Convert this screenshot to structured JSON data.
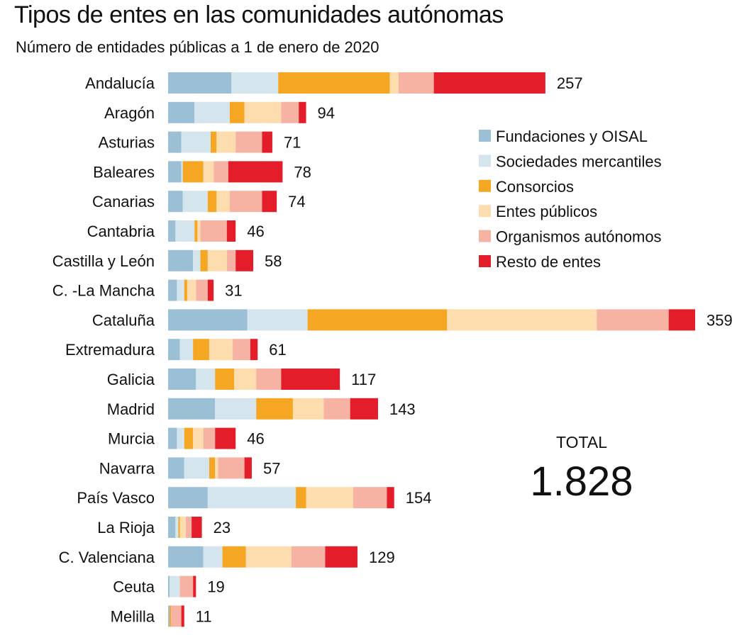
{
  "chart_data": {
    "type": "bar",
    "orientation": "horizontal",
    "stacked": true,
    "title": "Tipos de entes en las comunidades autónomas",
    "subtitle": "Número de entidades públicas a 1 de enero de 2020",
    "categories": [
      "Andalucía",
      "Aragón",
      "Asturias",
      "Baleares",
      "Canarias",
      "Cantabria",
      "Castilla y León",
      "C. -La Mancha",
      "Cataluña",
      "Extremadura",
      "Galicia",
      "Madrid",
      "Murcia",
      "Navarra",
      "País Vasco",
      "La Rioja",
      "C. Valenciana",
      "Ceuta",
      "Melilla"
    ],
    "totals": [
      257,
      94,
      71,
      78,
      74,
      46,
      58,
      31,
      359,
      61,
      117,
      143,
      46,
      57,
      154,
      23,
      129,
      19,
      11
    ],
    "series": [
      {
        "name": "Fundaciones y OISAL",
        "color": "#9bbfd4",
        "values": [
          43,
          18,
          9,
          9,
          10,
          5,
          17,
          6,
          54,
          8,
          19,
          32,
          6,
          11,
          27,
          5,
          24,
          1,
          1
        ]
      },
      {
        "name": "Sociedades mercantiles",
        "color": "#d4e5ee",
        "values": [
          32,
          24,
          20,
          1,
          17,
          13,
          5,
          5,
          41,
          9,
          13,
          28,
          5,
          17,
          60,
          2,
          13,
          7,
          0
        ]
      },
      {
        "name": "Consorcios",
        "color": "#f5a623",
        "values": [
          76,
          10,
          4,
          14,
          6,
          2,
          5,
          2,
          95,
          11,
          13,
          25,
          6,
          4,
          7,
          1,
          16,
          0,
          1
        ]
      },
      {
        "name": "Entes públicos",
        "color": "#fddcad",
        "values": [
          6,
          25,
          13,
          7,
          9,
          2,
          13,
          6,
          102,
          16,
          15,
          21,
          7,
          2,
          32,
          4,
          31,
          0,
          0
        ]
      },
      {
        "name": "Organismos autónomos",
        "color": "#f6b3a3",
        "values": [
          24,
          12,
          18,
          10,
          22,
          18,
          6,
          8,
          49,
          12,
          17,
          18,
          8,
          18,
          23,
          4,
          23,
          9,
          7
        ]
      },
      {
        "name": "Resto de entes",
        "color": "#e31e2a",
        "values": [
          76,
          5,
          7,
          37,
          10,
          6,
          12,
          4,
          18,
          5,
          40,
          19,
          14,
          5,
          5,
          7,
          22,
          2,
          2
        ]
      }
    ],
    "legend_position": "right",
    "grid": false,
    "xlim": [
      0,
      359
    ]
  },
  "total": {
    "label": "TOTAL",
    "value": "1.828"
  }
}
